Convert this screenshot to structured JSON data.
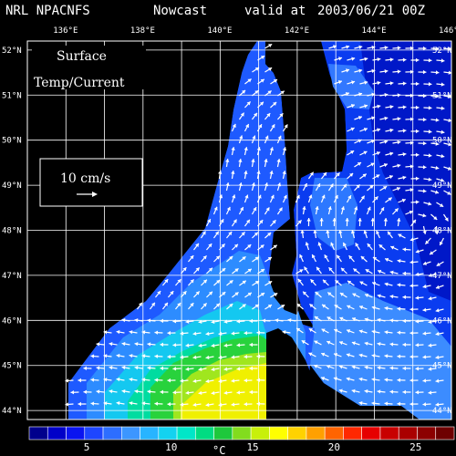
{
  "header": {
    "model": "NRL NPACNFS",
    "product": "Nowcast",
    "valid_prefix": "valid at",
    "valid_time": "2003/06/21 00Z"
  },
  "map": {
    "field_label_line1": "Surface",
    "field_label_line2": "Temp/Current",
    "lon_min": 135,
    "lon_max": 146,
    "lat_min": 43.8,
    "lat_max": 52.2,
    "lon_ticks": [
      "136°E",
      "138°E",
      "140°E",
      "142°E",
      "144°E",
      "146°E"
    ],
    "lat_ticks": [
      "44°N",
      "45°N",
      "46°N",
      "47°N",
      "48°N",
      "49°N",
      "50°N",
      "51°N",
      "52°N"
    ],
    "grid": true,
    "background_color": "#000000",
    "grid_color": "#ffffff",
    "vector_color": "#ffffff"
  },
  "reference_vector": {
    "label": "10 cm/s"
  },
  "colorbar": {
    "ticks": [
      "5",
      "10",
      "15",
      "20",
      "25"
    ],
    "unit": "°C",
    "colors": [
      "#00008c",
      "#0000c8",
      "#0a14f0",
      "#1e46ff",
      "#2d6eff",
      "#3c96ff",
      "#28b4ff",
      "#14d2f0",
      "#00e6c8",
      "#00dc82",
      "#1ec83c",
      "#82dc1e",
      "#c8f00a",
      "#ffff00",
      "#ffd200",
      "#ffa000",
      "#ff6400",
      "#ff2800",
      "#e60000",
      "#c80000",
      "#aa0000",
      "#8c0000",
      "#6e0000"
    ]
  }
}
